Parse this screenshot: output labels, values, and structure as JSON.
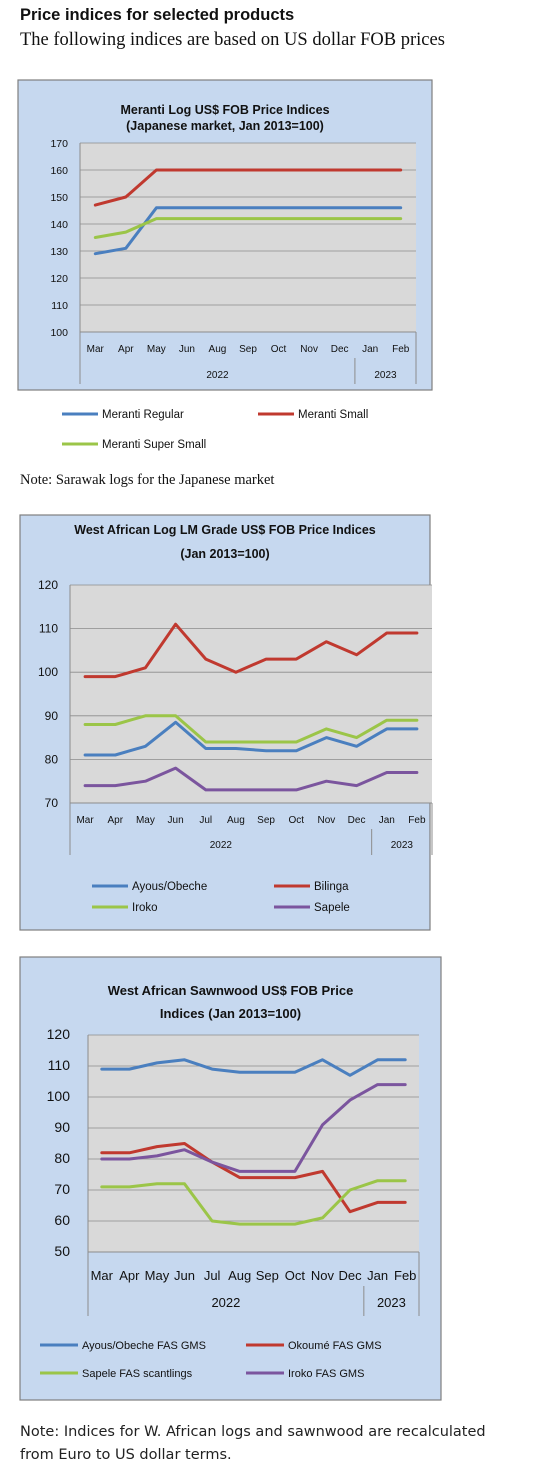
{
  "header": {
    "title": "Price indices for selected products",
    "subtitle": "The following indices are based on US dollar FOB prices"
  },
  "notes": {
    "note1": "Note: Sarawak logs for the Japanese market",
    "note2_line1": "Note: Indices for W. African logs and sawnwood are recalculated",
    "note2_line2": "from Euro to US dollar terms."
  },
  "colors": {
    "blue": "#4a7fbf",
    "red": "#c0392f",
    "green": "#9bc548",
    "purple": "#7b559e",
    "plot_bg": "#d9d9d9",
    "chart_bg": "#c6d8ef"
  },
  "chart_data": [
    {
      "type": "line",
      "title": [
        "Meranti Log US$ FOB Price Indices",
        "(Japanese market, Jan 2013=100)"
      ],
      "categories": [
        "Mar",
        "Apr",
        "May",
        "Jun",
        "Aug",
        "Sep",
        "Oct",
        "Nov",
        "Dec",
        "Jan",
        "Feb"
      ],
      "year_labels": [
        "2022",
        "2023"
      ],
      "ylim": [
        100,
        170
      ],
      "yticks": [
        100,
        110,
        120,
        130,
        140,
        150,
        160,
        170
      ],
      "series": [
        {
          "name": "Meranti Regular",
          "color": "#4a7fbf",
          "values": [
            129,
            131,
            146,
            146,
            146,
            146,
            146,
            146,
            146,
            146,
            146
          ]
        },
        {
          "name": "Meranti Small",
          "color": "#c0392f",
          "values": [
            147,
            150,
            160,
            160,
            160,
            160,
            160,
            160,
            160,
            160,
            160
          ]
        },
        {
          "name": "Meranti Super Small",
          "color": "#9bc548",
          "values": [
            135,
            137,
            142,
            142,
            142,
            142,
            142,
            142,
            142,
            142,
            142
          ]
        }
      ]
    },
    {
      "type": "line",
      "title": [
        "West African Log LM Grade US$ FOB Price Indices",
        "(Jan 2013=100)"
      ],
      "categories": [
        "Mar",
        "Apr",
        "May",
        "Jun",
        "Jul",
        "Aug",
        "Sep",
        "Oct",
        "Nov",
        "Dec",
        "Jan",
        "Feb"
      ],
      "year_labels": [
        "2022",
        "2023"
      ],
      "ylim": [
        70,
        120
      ],
      "yticks": [
        70,
        80,
        90,
        100,
        110,
        120
      ],
      "series": [
        {
          "name": "Ayous/Obeche",
          "color": "#4a7fbf",
          "values": [
            81,
            81,
            83,
            88.5,
            82.5,
            82.5,
            82,
            82,
            85,
            83,
            87,
            87
          ]
        },
        {
          "name": "Bilinga",
          "color": "#c0392f",
          "values": [
            99,
            99,
            101,
            111,
            103,
            100,
            103,
            103,
            107,
            104,
            109,
            109
          ]
        },
        {
          "name": "Iroko",
          "color": "#9bc548",
          "values": [
            88,
            88,
            90,
            90,
            84,
            84,
            84,
            84,
            87,
            85,
            89,
            89
          ]
        },
        {
          "name": "Sapele",
          "color": "#7b559e",
          "values": [
            74,
            74,
            75,
            78,
            73,
            73,
            73,
            73,
            75,
            74,
            77,
            77
          ]
        }
      ]
    },
    {
      "type": "line",
      "title": [
        "West African Sawnwood US$ FOB Price",
        "Indices (Jan 2013=100)"
      ],
      "categories": [
        "Mar",
        "Apr",
        "May",
        "Jun",
        "Jul",
        "Aug",
        "Sep",
        "Oct",
        "Nov",
        "Dec",
        "Jan",
        "Feb"
      ],
      "year_labels": [
        "2022",
        "2023"
      ],
      "ylim": [
        50,
        120
      ],
      "yticks": [
        50,
        60,
        70,
        80,
        90,
        100,
        110,
        120
      ],
      "series": [
        {
          "name": "Ayous/Obeche  FAS GMS",
          "color": "#4a7fbf",
          "values": [
            109,
            109,
            111,
            112,
            109,
            108,
            108,
            108,
            112,
            107,
            112,
            112
          ]
        },
        {
          "name": "Okoumé  FAS GMS",
          "color": "#c0392f",
          "values": [
            82,
            82,
            84,
            85,
            79,
            74,
            74,
            74,
            76,
            63,
            66,
            66
          ]
        },
        {
          "name": "Sapele FAS scantlings",
          "color": "#9bc548",
          "values": [
            71,
            71,
            72,
            72,
            60,
            59,
            59,
            59,
            61,
            70,
            73,
            73
          ]
        },
        {
          "name": "Iroko FAS GMS",
          "color": "#7b559e",
          "values": [
            80,
            80,
            81,
            83,
            79,
            76,
            76,
            76,
            91,
            99,
            104,
            104
          ]
        }
      ]
    }
  ]
}
